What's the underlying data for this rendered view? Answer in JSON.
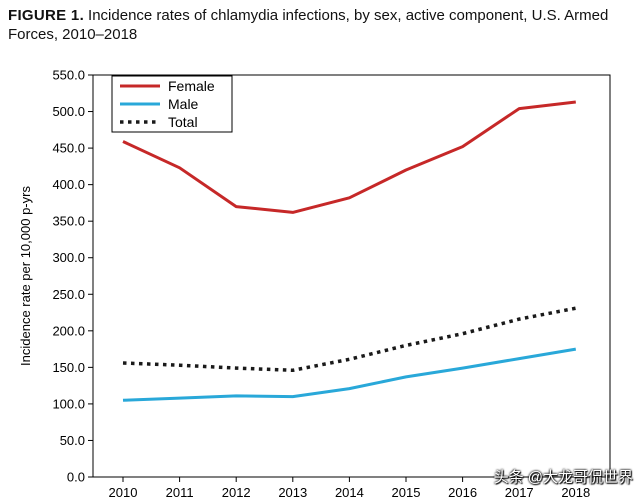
{
  "caption": {
    "label": "FIGURE 1.",
    "text": "Incidence rates of chlamydia infections, by sex, active component, U.S. Armed Forc­es, 2010–2018"
  },
  "watermark": "头条 @大龙哥侃世界",
  "chart_data": {
    "type": "line",
    "title": "Incidence rates of chlamydia infections, by sex, active component, U.S. Armed Forces, 2010–2018",
    "xlabel": "",
    "ylabel": "Incidence rate per 10,000 p-yrs",
    "x": [
      "2010",
      "2011",
      "2012",
      "2013",
      "2014",
      "2015",
      "2016",
      "2017",
      "2018"
    ],
    "ylim": [
      0,
      550
    ],
    "yticks": [
      "0.0",
      "50.0",
      "100.0",
      "150.0",
      "200.0",
      "250.0",
      "300.0",
      "350.0",
      "400.0",
      "450.0",
      "500.0",
      "550.0"
    ],
    "legend_position": "top-left",
    "series": [
      {
        "name": "Female",
        "color": "#c62828",
        "style": "solid",
        "values": [
          459,
          423,
          370,
          362,
          382,
          420,
          452,
          504,
          513
        ]
      },
      {
        "name": "Male",
        "color": "#29a8d9",
        "style": "solid",
        "values": [
          105,
          108,
          111,
          110,
          121,
          137,
          149,
          162,
          175
        ]
      },
      {
        "name": "Total",
        "color": "#1a1a1a",
        "style": "dotted",
        "values": [
          156,
          153,
          149,
          146,
          161,
          180,
          196,
          216,
          231
        ]
      }
    ]
  }
}
